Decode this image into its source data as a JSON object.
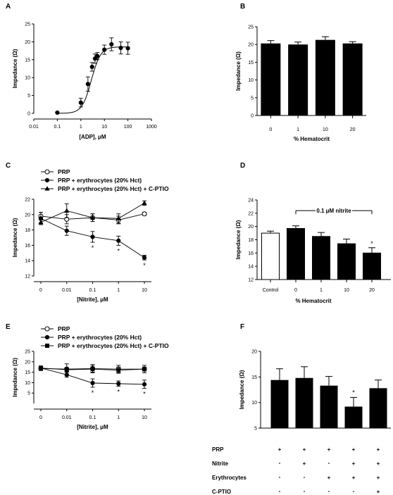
{
  "chart_data": [
    {
      "panel": "A",
      "type": "scatter",
      "xlabel": "[ADP], μM",
      "ylabel": "Impedance (Ω)",
      "xscale": "log",
      "xlim": [
        0.01,
        1000
      ],
      "ylim": [
        0,
        25
      ],
      "xticks": [
        "0.01",
        "0.1",
        "1",
        "10",
        "100",
        "1000"
      ],
      "yticks": [
        "0",
        "5",
        "10",
        "15",
        "20",
        "25"
      ],
      "x": [
        0.1,
        1,
        2,
        3,
        4,
        5,
        10,
        20,
        50,
        100
      ],
      "y": [
        0.2,
        3.0,
        8.2,
        13.0,
        15.3,
        16.0,
        17.8,
        19.3,
        18.3,
        18.2
      ],
      "err": [
        0,
        1.2,
        2.0,
        1.2,
        1.3,
        1.0,
        1.3,
        1.8,
        1.7,
        1.7
      ],
      "fit": "sigmoidal",
      "fit_params": {
        "bottom": 0,
        "top": 18.6,
        "ec50": 2.8,
        "hill": 2.2
      }
    },
    {
      "panel": "B",
      "type": "bar",
      "xlabel": "% Hematocrit",
      "ylabel": "Impedance (Ω)",
      "categories": [
        "0",
        "1",
        "10",
        "20"
      ],
      "values": [
        20.3,
        20.0,
        21.3,
        20.3
      ],
      "err": [
        0.8,
        0.7,
        0.9,
        0.5
      ],
      "ylim": [
        0,
        25
      ],
      "yticks": [
        "0",
        "5",
        "10",
        "15",
        "20",
        "25"
      ]
    },
    {
      "panel": "C",
      "type": "line",
      "xlabel": "[Nitrite], μM",
      "ylabel": "Impedance (Ω)",
      "categories": [
        "0",
        "0.01",
        "0.1",
        "1",
        "10"
      ],
      "ylim": [
        12,
        22
      ],
      "yticks": [
        "12",
        "14",
        "16",
        "18",
        "20",
        "22"
      ],
      "series": [
        {
          "name": "PRP",
          "marker": "open-circle",
          "values": [
            19.8,
            19.4,
            19.6,
            19.3,
            20.1
          ],
          "err": [
            0.5,
            0.6,
            0.5,
            0.5,
            0.2
          ]
        },
        {
          "name": "PRP + erythrocytes (20% Hct)",
          "marker": "filled-circle",
          "values": [
            19.5,
            17.9,
            17.1,
            16.6,
            14.4
          ],
          "err": [
            0.8,
            0.6,
            0.7,
            0.6,
            0.3
          ]
        },
        {
          "name": "PRP + erythrocytes (20% Hct) + C-PTIO",
          "marker": "filled-triangle",
          "values": [
            19.0,
            20.5,
            19.6,
            19.5,
            21.5
          ],
          "err": [
            0.3,
            0.9,
            0.5,
            0.6,
            0.3
          ]
        }
      ],
      "annotations": [
        "*",
        "*",
        "*"
      ]
    },
    {
      "panel": "D",
      "type": "bar",
      "xlabel": "% Hematocrit",
      "ylabel": "Impedance (Ω)",
      "categories": [
        "Control",
        "0",
        "1",
        "10",
        "20"
      ],
      "values": [
        19.0,
        19.7,
        18.5,
        17.4,
        16.0
      ],
      "err": [
        0.3,
        0.4,
        0.6,
        0.7,
        0.8
      ],
      "fills": [
        "#ffffff",
        "#000000",
        "#000000",
        "#000000",
        "#000000"
      ],
      "ylim": [
        12,
        24
      ],
      "yticks": [
        "12",
        "14",
        "16",
        "18",
        "20",
        "22",
        "24"
      ],
      "bracket_label": "0.1 μM nitrite",
      "annotations": [
        "*"
      ]
    },
    {
      "panel": "E",
      "type": "line",
      "xlabel": "[Nitrite], μM",
      "ylabel": "Impedance (Ω)",
      "categories": [
        "0",
        "0.01",
        "0.1",
        "1",
        "10"
      ],
      "ylim": [
        0,
        25
      ],
      "yticks": [
        "5",
        "10",
        "15",
        "20",
        "25"
      ],
      "series": [
        {
          "name": "PRP",
          "marker": "open-circle",
          "values": [
            16.8,
            16.5,
            16.7,
            16.5,
            16.5
          ],
          "err": [
            1.0,
            2.5,
            2.0,
            1.8,
            1.8
          ]
        },
        {
          "name": "PRP + erythrocytes (20% Hct)",
          "marker": "filled-circle",
          "values": [
            17.0,
            13.8,
            9.8,
            9.5,
            9.2
          ],
          "err": [
            1.0,
            1.2,
            2.0,
            1.3,
            2.0
          ]
        },
        {
          "name": "PRP + erythrocytes (20% Hct) + C-PTIO",
          "marker": "filled-square",
          "values": [
            17.0,
            16.2,
            16.5,
            16.0,
            16.5
          ],
          "err": [
            1.0,
            1.0,
            1.5,
            1.5,
            1.0
          ]
        }
      ],
      "annotations": [
        "*",
        "*",
        "*"
      ]
    },
    {
      "panel": "F",
      "type": "bar",
      "ylabel": "Impedance (Ω)",
      "values": [
        14.4,
        14.8,
        13.3,
        9.2,
        12.8
      ],
      "err": [
        2.2,
        2.2,
        1.8,
        1.8,
        1.6
      ],
      "ylim": [
        5,
        20
      ],
      "yticks": [
        "5",
        "10",
        "15",
        "20"
      ],
      "annotations": [
        "*"
      ],
      "conditions": [
        {
          "label": "PRP",
          "signs": [
            "+",
            "+",
            "+",
            "+",
            "+"
          ]
        },
        {
          "label": "Nitrite",
          "signs": [
            "-",
            "+",
            "-",
            "+",
            "+"
          ]
        },
        {
          "label": "Erythrocytes",
          "signs": [
            "-",
            "-",
            "+",
            "+",
            "+"
          ]
        },
        {
          "label": "C-PTIO",
          "signs": [
            "-",
            "-",
            "-",
            "-",
            "+"
          ]
        }
      ]
    }
  ]
}
